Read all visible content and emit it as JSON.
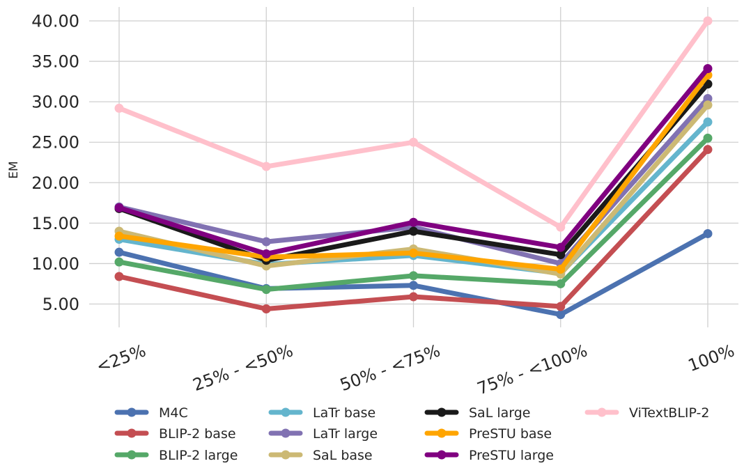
{
  "chart_data": {
    "type": "line",
    "title": "",
    "xlabel": "",
    "ylabel": "EM",
    "categories": [
      "<25%",
      "25% - <50%",
      "50% - <75%",
      "75% - <100%",
      "100%"
    ],
    "ylim": [
      2.0,
      41.5
    ],
    "yticks": [
      "5.00",
      "10.00",
      "15.00",
      "20.00",
      "25.00",
      "30.00",
      "35.00",
      "40.00"
    ],
    "grid": true,
    "legend_position": "bottom",
    "series": [
      {
        "name": "M4C",
        "color": "#4c72b0",
        "values": [
          11.4,
          6.9,
          7.3,
          3.7,
          13.7
        ]
      },
      {
        "name": "BLIP-2 base",
        "color": "#c44e52",
        "values": [
          8.4,
          4.4,
          5.9,
          4.7,
          24.1
        ]
      },
      {
        "name": "BLIP-2 large",
        "color": "#55a868",
        "values": [
          10.2,
          6.8,
          8.5,
          7.5,
          25.5
        ]
      },
      {
        "name": "LaTr base",
        "color": "#64b5cd",
        "values": [
          13.0,
          9.9,
          11.0,
          8.8,
          27.5
        ]
      },
      {
        "name": "LaTr large",
        "color": "#8172b2",
        "values": [
          17.0,
          12.7,
          14.5,
          10.0,
          30.4
        ]
      },
      {
        "name": "SaL base",
        "color": "#ccb974",
        "values": [
          14.0,
          9.7,
          11.8,
          8.7,
          29.6
        ]
      },
      {
        "name": "SaL large",
        "color": "#1a1a1a",
        "values": [
          16.8,
          10.4,
          14.0,
          11.1,
          32.2
        ]
      },
      {
        "name": "PreSTU base",
        "color": "#ffa500",
        "values": [
          13.4,
          10.8,
          11.3,
          9.3,
          33.3
        ]
      },
      {
        "name": "PreSTU large",
        "color": "#800080",
        "values": [
          16.9,
          11.2,
          15.1,
          12.0,
          34.1
        ]
      },
      {
        "name": "ViTextBLIP-2",
        "color": "#ffc0cb",
        "values": [
          29.2,
          22.0,
          25.0,
          14.5,
          40.0
        ]
      }
    ]
  }
}
